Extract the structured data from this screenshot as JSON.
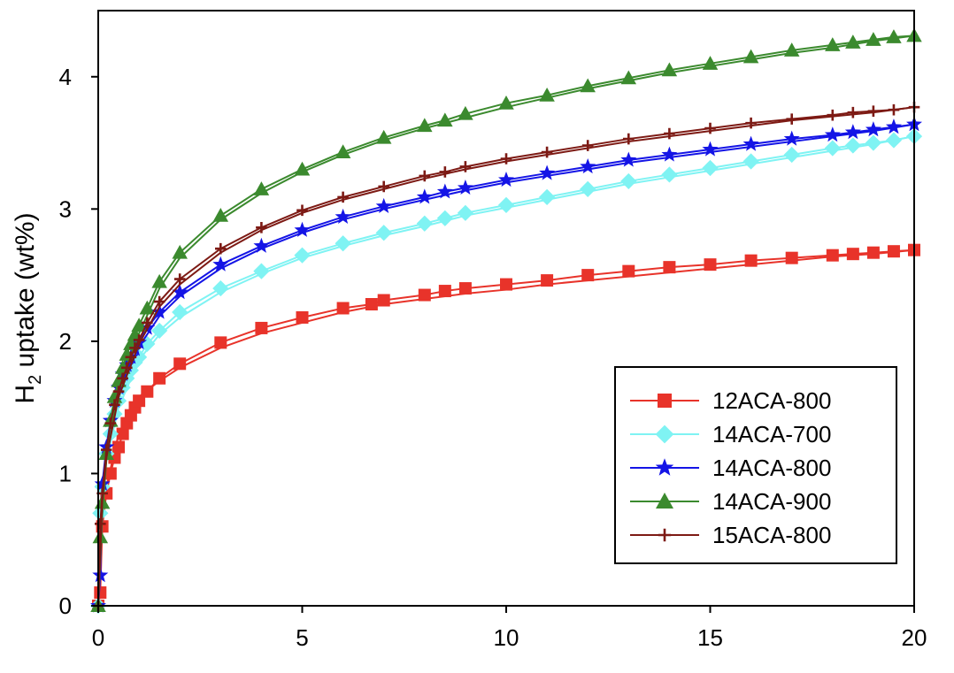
{
  "chart_data": {
    "type": "line",
    "xlim": [
      0,
      20
    ],
    "ylim": [
      0,
      4.5
    ],
    "xticks": [
      "0",
      "5",
      "10",
      "15",
      "20"
    ],
    "yticks": [
      "0",
      "1",
      "2",
      "3",
      "4"
    ],
    "ylabel_main": "H",
    "ylabel_sub": "2",
    "ylabel_rest": " uptake (wt%)",
    "xlabel": "",
    "grid": false,
    "legend_position": "right",
    "series": [
      {
        "name": "12ACA-800",
        "color": "#e8332a",
        "marker": "square",
        "adsorption": [
          [
            0,
            0
          ],
          [
            0.05,
            0.1
          ],
          [
            0.1,
            0.6
          ],
          [
            0.2,
            0.85
          ],
          [
            0.3,
            1.0
          ],
          [
            0.4,
            1.12
          ],
          [
            0.5,
            1.2
          ],
          [
            0.6,
            1.3
          ],
          [
            0.7,
            1.38
          ],
          [
            0.8,
            1.44
          ],
          [
            0.9,
            1.5
          ],
          [
            1,
            1.55
          ],
          [
            1.2,
            1.62
          ],
          [
            1.5,
            1.72
          ],
          [
            2,
            1.83
          ],
          [
            3,
            1.99
          ],
          [
            4,
            2.1
          ],
          [
            5,
            2.18
          ],
          [
            6,
            2.25
          ],
          [
            6.7,
            2.28
          ],
          [
            7,
            2.31
          ],
          [
            8,
            2.35
          ],
          [
            8.5,
            2.38
          ],
          [
            9,
            2.4
          ],
          [
            10,
            2.43
          ],
          [
            11,
            2.46
          ],
          [
            12,
            2.5
          ],
          [
            13,
            2.53
          ],
          [
            14,
            2.56
          ],
          [
            15,
            2.58
          ],
          [
            16,
            2.61
          ],
          [
            17,
            2.63
          ],
          [
            18,
            2.65
          ],
          [
            18.5,
            2.66
          ],
          [
            19,
            2.67
          ],
          [
            19.5,
            2.68
          ],
          [
            20,
            2.69
          ]
        ],
        "desorption": [
          [
            20,
            2.69
          ],
          [
            19,
            2.66
          ],
          [
            18,
            2.64
          ],
          [
            17,
            2.61
          ],
          [
            16,
            2.58
          ],
          [
            15,
            2.55
          ],
          [
            14,
            2.52
          ],
          [
            13,
            2.49
          ],
          [
            12,
            2.46
          ],
          [
            11,
            2.43
          ],
          [
            10,
            2.39
          ],
          [
            9,
            2.36
          ],
          [
            8,
            2.32
          ],
          [
            7,
            2.28
          ],
          [
            6,
            2.22
          ],
          [
            5,
            2.14
          ],
          [
            4,
            2.06
          ],
          [
            3,
            1.95
          ],
          [
            2,
            1.8
          ],
          [
            1.5,
            1.7
          ],
          [
            1,
            1.58
          ],
          [
            0.5,
            1.3
          ],
          [
            0.2,
            0.9
          ],
          [
            0.1,
            0.65
          ],
          [
            0,
            0
          ]
        ]
      },
      {
        "name": "14ACA-700",
        "color": "#7ff3f3",
        "marker": "diamond",
        "adsorption": [
          [
            0,
            0
          ],
          [
            0.05,
            0.7
          ],
          [
            0.1,
            0.9
          ],
          [
            0.2,
            1.15
          ],
          [
            0.3,
            1.3
          ],
          [
            0.4,
            1.45
          ],
          [
            0.5,
            1.55
          ],
          [
            0.6,
            1.65
          ],
          [
            0.7,
            1.72
          ],
          [
            0.8,
            1.78
          ],
          [
            0.9,
            1.84
          ],
          [
            1,
            1.88
          ],
          [
            1.2,
            1.98
          ],
          [
            1.5,
            2.08
          ],
          [
            2,
            2.22
          ],
          [
            3,
            2.4
          ],
          [
            4,
            2.53
          ],
          [
            5,
            2.65
          ],
          [
            6,
            2.74
          ],
          [
            7,
            2.82
          ],
          [
            8,
            2.89
          ],
          [
            8.5,
            2.93
          ],
          [
            9,
            2.97
          ],
          [
            10,
            3.03
          ],
          [
            11,
            3.09
          ],
          [
            12,
            3.15
          ],
          [
            13,
            3.21
          ],
          [
            14,
            3.26
          ],
          [
            15,
            3.31
          ],
          [
            16,
            3.36
          ],
          [
            17,
            3.41
          ],
          [
            18,
            3.46
          ],
          [
            18.5,
            3.48
          ],
          [
            19,
            3.5
          ],
          [
            19.5,
            3.52
          ],
          [
            20,
            3.55
          ]
        ],
        "desorption": [
          [
            20,
            3.55
          ],
          [
            19,
            3.49
          ],
          [
            18,
            3.44
          ],
          [
            17,
            3.39
          ],
          [
            16,
            3.34
          ],
          [
            15,
            3.29
          ],
          [
            14,
            3.24
          ],
          [
            13,
            3.19
          ],
          [
            12,
            3.13
          ],
          [
            11,
            3.07
          ],
          [
            10,
            3.01
          ],
          [
            9,
            2.95
          ],
          [
            8,
            2.87
          ],
          [
            7,
            2.8
          ],
          [
            6,
            2.72
          ],
          [
            5,
            2.63
          ],
          [
            4,
            2.51
          ],
          [
            3,
            2.37
          ],
          [
            2,
            2.18
          ],
          [
            1.5,
            2.05
          ],
          [
            1,
            1.86
          ],
          [
            0.5,
            1.5
          ],
          [
            0.2,
            1.1
          ],
          [
            0.1,
            0.85
          ],
          [
            0,
            0
          ]
        ]
      },
      {
        "name": "14ACA-800",
        "color": "#1414e6",
        "marker": "star",
        "adsorption": [
          [
            0,
            0
          ],
          [
            0.05,
            0.23
          ],
          [
            0.1,
            0.92
          ],
          [
            0.2,
            1.2
          ],
          [
            0.3,
            1.4
          ],
          [
            0.4,
            1.55
          ],
          [
            0.5,
            1.65
          ],
          [
            0.6,
            1.75
          ],
          [
            0.7,
            1.82
          ],
          [
            0.8,
            1.88
          ],
          [
            0.9,
            1.94
          ],
          [
            1,
            1.99
          ],
          [
            1.2,
            2.1
          ],
          [
            1.5,
            2.22
          ],
          [
            2,
            2.37
          ],
          [
            3,
            2.58
          ],
          [
            4,
            2.72
          ],
          [
            5,
            2.84
          ],
          [
            6,
            2.94
          ],
          [
            7,
            3.02
          ],
          [
            8,
            3.09
          ],
          [
            8.5,
            3.13
          ],
          [
            9,
            3.16
          ],
          [
            10,
            3.22
          ],
          [
            11,
            3.27
          ],
          [
            12,
            3.32
          ],
          [
            13,
            3.37
          ],
          [
            14,
            3.41
          ],
          [
            15,
            3.45
          ],
          [
            16,
            3.49
          ],
          [
            17,
            3.53
          ],
          [
            18,
            3.56
          ],
          [
            18.5,
            3.58
          ],
          [
            19,
            3.6
          ],
          [
            19.5,
            3.62
          ],
          [
            20,
            3.64
          ]
        ],
        "desorption": [
          [
            20,
            3.64
          ],
          [
            19,
            3.59
          ],
          [
            18,
            3.55
          ],
          [
            17,
            3.51
          ],
          [
            16,
            3.47
          ],
          [
            15,
            3.43
          ],
          [
            14,
            3.39
          ],
          [
            13,
            3.35
          ],
          [
            12,
            3.3
          ],
          [
            11,
            3.25
          ],
          [
            10,
            3.2
          ],
          [
            9,
            3.14
          ],
          [
            8,
            3.07
          ],
          [
            7,
            3.0
          ],
          [
            6,
            2.92
          ],
          [
            5,
            2.82
          ],
          [
            4,
            2.7
          ],
          [
            3,
            2.55
          ],
          [
            2,
            2.34
          ],
          [
            1.5,
            2.19
          ],
          [
            1,
            1.96
          ],
          [
            0.5,
            1.6
          ],
          [
            0.2,
            1.15
          ],
          [
            0.1,
            0.7
          ],
          [
            0,
            0
          ]
        ]
      },
      {
        "name": "14ACA-900",
        "color": "#3b8a2e",
        "marker": "triangle",
        "adsorption": [
          [
            0,
            0
          ],
          [
            0.05,
            0.52
          ],
          [
            0.1,
            0.78
          ],
          [
            0.2,
            1.15
          ],
          [
            0.3,
            1.4
          ],
          [
            0.4,
            1.58
          ],
          [
            0.5,
            1.7
          ],
          [
            0.6,
            1.8
          ],
          [
            0.7,
            1.9
          ],
          [
            0.8,
            1.98
          ],
          [
            0.9,
            2.05
          ],
          [
            1,
            2.12
          ],
          [
            1.2,
            2.25
          ],
          [
            1.5,
            2.45
          ],
          [
            2,
            2.67
          ],
          [
            3,
            2.95
          ],
          [
            4,
            3.15
          ],
          [
            5,
            3.3
          ],
          [
            6,
            3.43
          ],
          [
            7,
            3.54
          ],
          [
            8,
            3.63
          ],
          [
            8.5,
            3.67
          ],
          [
            9,
            3.72
          ],
          [
            10,
            3.8
          ],
          [
            11,
            3.86
          ],
          [
            12,
            3.93
          ],
          [
            13,
            3.99
          ],
          [
            14,
            4.05
          ],
          [
            15,
            4.1
          ],
          [
            16,
            4.15
          ],
          [
            17,
            4.2
          ],
          [
            18,
            4.24
          ],
          [
            18.5,
            4.26
          ],
          [
            19,
            4.28
          ],
          [
            19.5,
            4.3
          ],
          [
            20,
            4.31
          ]
        ],
        "desorption": [
          [
            20,
            4.31
          ],
          [
            19,
            4.27
          ],
          [
            18,
            4.22
          ],
          [
            17,
            4.18
          ],
          [
            16,
            4.13
          ],
          [
            15,
            4.08
          ],
          [
            14,
            4.03
          ],
          [
            13,
            3.97
          ],
          [
            12,
            3.91
          ],
          [
            11,
            3.84
          ],
          [
            10,
            3.77
          ],
          [
            9,
            3.69
          ],
          [
            8,
            3.61
          ],
          [
            7,
            3.52
          ],
          [
            6,
            3.41
          ],
          [
            5,
            3.28
          ],
          [
            4,
            3.12
          ],
          [
            3,
            2.92
          ],
          [
            2,
            2.63
          ],
          [
            1.5,
            2.4
          ],
          [
            1,
            2.06
          ],
          [
            0.5,
            1.65
          ],
          [
            0.2,
            1.1
          ],
          [
            0.1,
            0.7
          ],
          [
            0,
            0
          ]
        ]
      },
      {
        "name": "15ACA-800",
        "color": "#7d1a14",
        "marker": "plus",
        "adsorption": [
          [
            0,
            0
          ],
          [
            0.05,
            0.62
          ],
          [
            0.1,
            0.85
          ],
          [
            0.2,
            1.18
          ],
          [
            0.3,
            1.38
          ],
          [
            0.4,
            1.52
          ],
          [
            0.5,
            1.62
          ],
          [
            0.6,
            1.72
          ],
          [
            0.7,
            1.8
          ],
          [
            0.8,
            1.88
          ],
          [
            0.9,
            1.95
          ],
          [
            1,
            2.01
          ],
          [
            1.2,
            2.14
          ],
          [
            1.5,
            2.3
          ],
          [
            2,
            2.47
          ],
          [
            3,
            2.7
          ],
          [
            4,
            2.86
          ],
          [
            5,
            2.99
          ],
          [
            6,
            3.09
          ],
          [
            7,
            3.17
          ],
          [
            8,
            3.25
          ],
          [
            8.5,
            3.28
          ],
          [
            9,
            3.32
          ],
          [
            10,
            3.38
          ],
          [
            11,
            3.43
          ],
          [
            12,
            3.48
          ],
          [
            13,
            3.53
          ],
          [
            14,
            3.57
          ],
          [
            15,
            3.61
          ],
          [
            16,
            3.65
          ],
          [
            17,
            3.68
          ],
          [
            18,
            3.71
          ],
          [
            18.5,
            3.73
          ],
          [
            19,
            3.74
          ],
          [
            19.5,
            3.75
          ],
          [
            20,
            3.77
          ]
        ],
        "desorption": [
          [
            20,
            3.77
          ],
          [
            19,
            3.73
          ],
          [
            18,
            3.7
          ],
          [
            17,
            3.67
          ],
          [
            16,
            3.63
          ],
          [
            15,
            3.59
          ],
          [
            14,
            3.55
          ],
          [
            13,
            3.51
          ],
          [
            12,
            3.46
          ],
          [
            11,
            3.41
          ],
          [
            10,
            3.36
          ],
          [
            9,
            3.3
          ],
          [
            8,
            3.23
          ],
          [
            7,
            3.15
          ],
          [
            6,
            3.07
          ],
          [
            5,
            2.97
          ],
          [
            4,
            2.84
          ],
          [
            3,
            2.67
          ],
          [
            2,
            2.43
          ],
          [
            1.5,
            2.26
          ],
          [
            1,
            1.98
          ],
          [
            0.5,
            1.58
          ],
          [
            0.2,
            1.12
          ],
          [
            0.1,
            0.8
          ],
          [
            0,
            0
          ]
        ]
      }
    ]
  }
}
